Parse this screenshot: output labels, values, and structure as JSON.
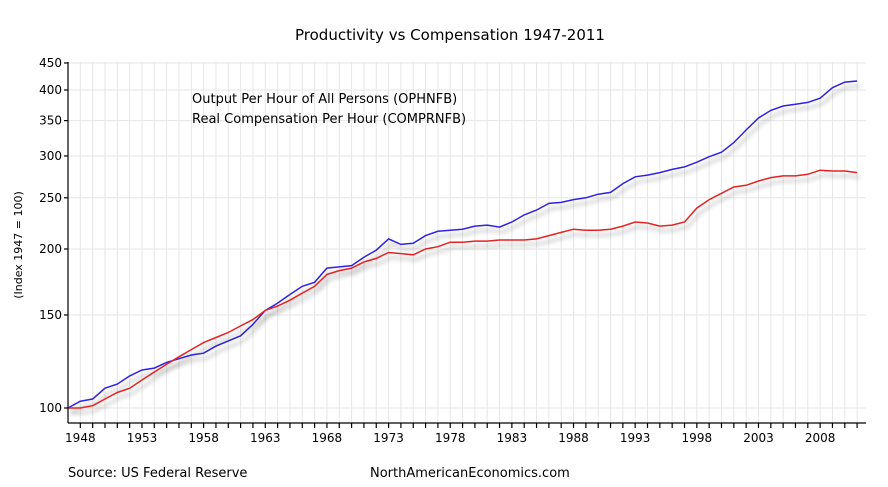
{
  "chart_data": {
    "type": "line",
    "title": "Productivity vs Compensation 1947-2011",
    "xlabel": "",
    "ylabel": "(Index 1947 = 100)",
    "yscale": "log",
    "ylim": [
      90,
      450
    ],
    "xlim": [
      1947,
      2011.75
    ],
    "yticks": [
      100,
      150,
      200,
      250,
      300,
      350,
      400,
      450
    ],
    "xticks": [
      1948,
      1953,
      1958,
      1963,
      1968,
      1973,
      1978,
      1983,
      1988,
      1993,
      1998,
      2003,
      2008
    ],
    "grid": true,
    "legend_position": "top-left",
    "x": [
      1947,
      1948,
      1949,
      1950,
      1951,
      1952,
      1953,
      1954,
      1955,
      1956,
      1957,
      1958,
      1959,
      1960,
      1961,
      1962,
      1963,
      1964,
      1965,
      1966,
      1967,
      1968,
      1969,
      1970,
      1971,
      1972,
      1973,
      1974,
      1975,
      1976,
      1977,
      1978,
      1979,
      1980,
      1981,
      1982,
      1983,
      1984,
      1985,
      1986,
      1987,
      1988,
      1989,
      1990,
      1991,
      1992,
      1993,
      1994,
      1995,
      1996,
      1997,
      1998,
      1999,
      2000,
      2001,
      2002,
      2003,
      2004,
      2005,
      2006,
      2007,
      2008,
      2009,
      2010,
      2011
    ],
    "series": [
      {
        "name": "Output Per Hour of All Persons (OPHNFB)",
        "color": "#2f22e6",
        "values": [
          100,
          103,
          104,
          109,
          111,
          115,
          118,
          119,
          122,
          124,
          126,
          127,
          131,
          134,
          137,
          144,
          153,
          158,
          164,
          170,
          173,
          184,
          185,
          186,
          193,
          199,
          209,
          204,
          205,
          212,
          216,
          217,
          218,
          221,
          222,
          220,
          225,
          232,
          237,
          244,
          245,
          248,
          250,
          254,
          256,
          266,
          274,
          276,
          279,
          283,
          286,
          292,
          299,
          305,
          318,
          336,
          354,
          366,
          373,
          376,
          379,
          386,
          404,
          414,
          416
        ]
      },
      {
        "name": "Real Compensation Per Hour (COMPRNFB)",
        "color": "#e62222",
        "values": [
          100,
          100,
          101,
          104,
          107,
          109,
          113,
          117,
          121,
          125,
          129,
          133,
          136,
          139,
          143,
          147,
          153,
          156,
          160,
          165,
          170,
          179,
          182,
          184,
          189,
          192,
          197,
          196,
          195,
          200,
          202,
          206,
          206,
          207,
          207,
          208,
          208,
          208,
          209,
          212,
          215,
          218,
          217,
          217,
          218,
          221,
          225,
          224,
          221,
          222,
          225,
          239,
          248,
          255,
          262,
          264,
          269,
          273,
          275,
          275,
          277,
          282,
          281,
          281,
          279
        ]
      }
    ]
  },
  "footer": {
    "source": "Source: US Federal Reserve",
    "site": "NorthAmericanEconomics.com"
  }
}
